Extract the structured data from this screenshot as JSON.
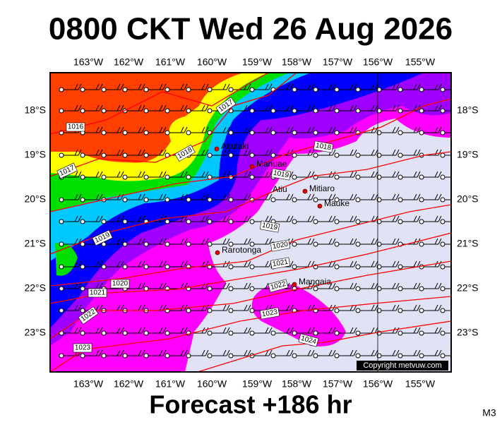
{
  "title": "0800 CKT Wed 26 Aug 2026",
  "footer": "Forecast +186 hr",
  "model": "M3",
  "copyright": "Copyright metvuw.com",
  "longitude_labels": [
    "163°W",
    "162°W",
    "161°W",
    "160°W",
    "159°W",
    "158°W",
    "157°W",
    "156°W",
    "155°W"
  ],
  "latitude_labels": [
    "18°S",
    "19°S",
    "20°S",
    "21°S",
    "22°S",
    "23°S"
  ],
  "places": [
    "Aitutaki",
    "Manuae",
    "Atiu",
    "Mitiaro",
    "Mauke",
    "Rarotonga",
    "Mangaia"
  ],
  "isobar_labels": [
    "1017",
    "1016",
    "1018",
    "1017",
    "1018",
    "1019",
    "1019",
    "1019",
    "1020",
    "1020",
    "1021",
    "1021",
    "1022",
    "1022",
    "1023",
    "1023",
    "1024"
  ]
}
